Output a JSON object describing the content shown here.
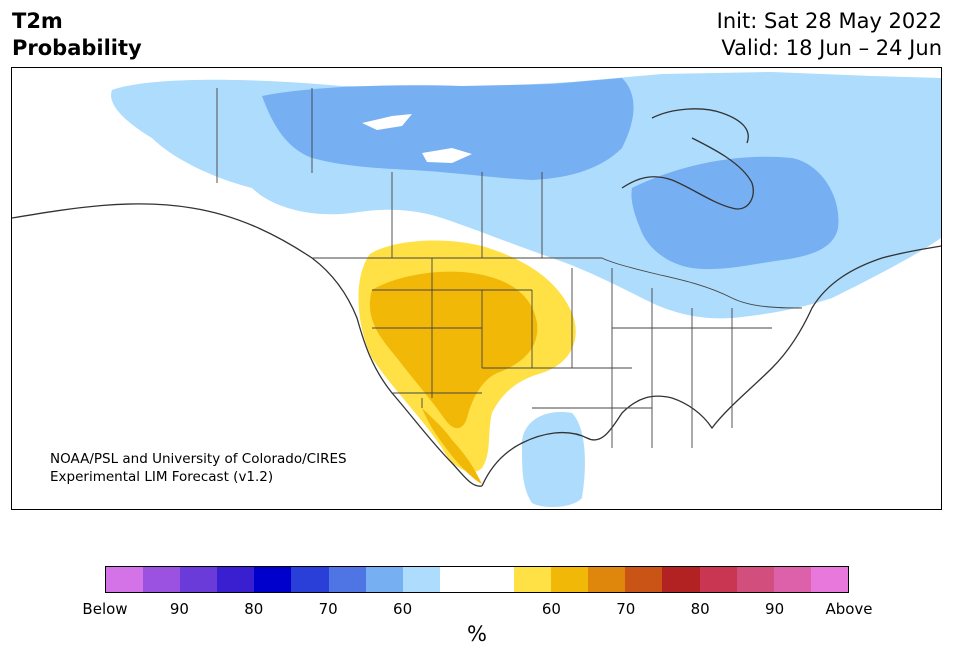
{
  "header": {
    "title_line1": "T2m",
    "title_line2": "Probability",
    "init": "Init: Sat 28 May 2022",
    "valid": "Valid: 18 Jun – 24 Jun"
  },
  "credit": {
    "line1": "NOAA/PSL and University of Colorado/CIRES",
    "line2": "Experimental LIM Forecast (v1.2)"
  },
  "colorbar": {
    "colors": [
      "#d472e8",
      "#9b52e0",
      "#6a3bd8",
      "#3a1fd0",
      "#0000cc",
      "#2a3fd8",
      "#4f74e4",
      "#76aff2",
      "#addcfd",
      "#ffffff",
      "#ffffff",
      "#ffe045",
      "#f2b807",
      "#de870c",
      "#c95416",
      "#b22222",
      "#c83652",
      "#d24f7d",
      "#dc60aa",
      "#e878dc"
    ],
    "tick_labels": [
      "Below",
      "90",
      "80",
      "70",
      "60",
      "60",
      "70",
      "80",
      "90",
      "Above"
    ],
    "unit": "%"
  },
  "map": {
    "region": "North America",
    "below_light_color": "#addcfd",
    "below_medium_color": "#76aff2",
    "above_light_color": "#ffe045",
    "above_medium_color": "#f2b807"
  }
}
